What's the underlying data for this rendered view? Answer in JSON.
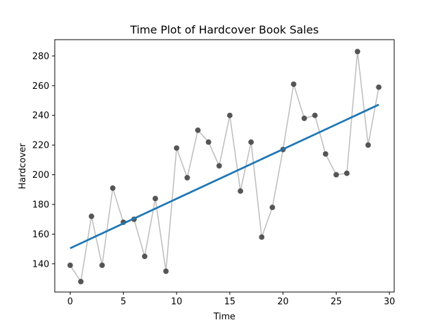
{
  "chart_data": {
    "type": "line",
    "title": "Time Plot of Hardcover Book Sales",
    "xlabel": "Time",
    "ylabel": "Hardcover",
    "xlim": [
      -1.45,
      30.45
    ],
    "ylim": [
      121,
      291
    ],
    "x_ticks": [
      0,
      5,
      10,
      15,
      20,
      25,
      30
    ],
    "y_ticks": [
      140,
      160,
      180,
      200,
      220,
      240,
      260,
      280
    ],
    "grid": false,
    "legend": "none",
    "colors": {
      "points": "#4d4d4d",
      "connect_line": "#bfbfbf",
      "trend_line": "#1f77b4"
    },
    "series": [
      {
        "kind": "line+markers",
        "x": [
          0,
          1,
          2,
          3,
          4,
          5,
          6,
          7,
          8,
          9,
          10,
          11,
          12,
          13,
          14,
          15,
          16,
          17,
          18,
          19,
          20,
          21,
          22,
          23,
          24,
          25,
          26,
          27,
          28,
          29
        ],
        "values": [
          139,
          128,
          172,
          139,
          191,
          168,
          170,
          145,
          184,
          135,
          218,
          198,
          230,
          222,
          206,
          240,
          189,
          222,
          158,
          178,
          217,
          261,
          238,
          240,
          214,
          200,
          201,
          283,
          220,
          259
        ]
      },
      {
        "kind": "trend",
        "x": [
          0,
          29
        ],
        "values": [
          150.5,
          247.2
        ]
      }
    ]
  }
}
